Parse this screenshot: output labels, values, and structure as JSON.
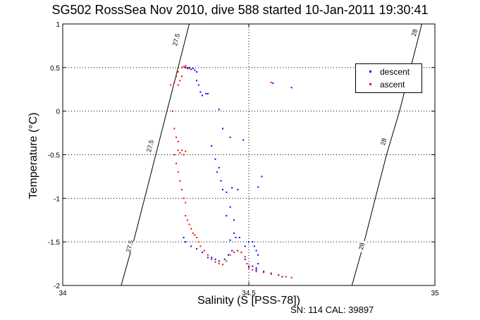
{
  "chart_data": {
    "type": "scatter",
    "title": "SG502 RossSea Nov 2010, dive 588 started 10-Jan-2011 19:30:41",
    "xlabel": "Salinity (S [PSS-78])",
    "ylabel": "Temperature (°C)",
    "xlim": [
      34,
      35
    ],
    "ylim": [
      -2,
      1
    ],
    "x_ticks": [
      "34",
      "34.5",
      "35"
    ],
    "y_ticks": [
      "-2",
      "-1.5",
      "-1",
      "-0.5",
      "0",
      "0.5",
      "1"
    ],
    "grid": "dotted",
    "legend_position": "top-right",
    "footer": "SN: 114  CAL: 39897",
    "colors": {
      "descent": "#0000ff",
      "ascent": "#ff0000",
      "axes": "#000000"
    },
    "contours": [
      {
        "label": "27.5",
        "points": [
          [
            34.157,
            -2.0
          ],
          [
            34.19,
            -1.5
          ],
          [
            34.22,
            -1.0
          ],
          [
            34.25,
            -0.5
          ],
          [
            34.28,
            0.0
          ],
          [
            34.31,
            0.5
          ],
          [
            34.34,
            1.0
          ]
        ],
        "label_positions": [
          [
            34.18,
            -1.55
          ],
          [
            34.235,
            -0.4
          ],
          [
            34.305,
            0.82
          ]
        ]
      },
      {
        "label": "28",
        "points": [
          [
            34.777,
            -2.0
          ],
          [
            34.81,
            -1.5
          ],
          [
            34.84,
            -1.0
          ],
          [
            34.87,
            -0.5
          ],
          [
            34.905,
            0.0
          ],
          [
            34.935,
            0.5
          ],
          [
            34.965,
            1.0
          ]
        ],
        "label_positions": [
          [
            34.803,
            -1.55
          ],
          [
            34.862,
            -0.35
          ],
          [
            34.945,
            0.9
          ]
        ]
      }
    ],
    "series": [
      {
        "name": "descent",
        "color": "#0000ff",
        "marker": ".",
        "points": [
          [
            34.33,
            0.5
          ],
          [
            34.335,
            0.49
          ],
          [
            34.34,
            0.5
          ],
          [
            34.345,
            0.48
          ],
          [
            34.35,
            0.49
          ],
          [
            34.355,
            0.47
          ],
          [
            34.36,
            0.45
          ],
          [
            34.36,
            0.35
          ],
          [
            34.365,
            0.3
          ],
          [
            34.37,
            0.22
          ],
          [
            34.375,
            0.18
          ],
          [
            34.385,
            0.2
          ],
          [
            34.39,
            0.2
          ],
          [
            34.42,
            0.02
          ],
          [
            34.43,
            -0.2
          ],
          [
            34.45,
            -0.3
          ],
          [
            34.485,
            -0.33
          ],
          [
            34.565,
            0.32
          ],
          [
            34.615,
            0.27
          ],
          [
            34.4,
            -0.4
          ],
          [
            34.41,
            -0.55
          ],
          [
            34.42,
            -0.65
          ],
          [
            34.415,
            -0.7
          ],
          [
            34.425,
            -0.8
          ],
          [
            34.43,
            -0.9
          ],
          [
            34.44,
            -0.93
          ],
          [
            34.455,
            -0.88
          ],
          [
            34.47,
            -0.9
          ],
          [
            34.525,
            -0.87
          ],
          [
            34.535,
            -0.75
          ],
          [
            34.45,
            -1.1
          ],
          [
            34.44,
            -1.2
          ],
          [
            34.46,
            -1.25
          ],
          [
            34.46,
            -1.4
          ],
          [
            34.465,
            -1.45
          ],
          [
            34.45,
            -1.48
          ],
          [
            34.475,
            -1.45
          ],
          [
            34.49,
            -1.55
          ],
          [
            34.5,
            -1.5
          ],
          [
            34.51,
            -1.5
          ],
          [
            34.515,
            -1.55
          ],
          [
            34.52,
            -1.6
          ],
          [
            34.525,
            -1.65
          ],
          [
            34.525,
            -1.75
          ],
          [
            34.52,
            -1.8
          ],
          [
            34.51,
            -1.78
          ],
          [
            34.5,
            -1.78
          ],
          [
            34.49,
            -1.7
          ],
          [
            34.47,
            -1.6
          ],
          [
            34.455,
            -1.6
          ],
          [
            34.445,
            -1.65
          ],
          [
            34.435,
            -1.7
          ],
          [
            34.42,
            -1.72
          ],
          [
            34.41,
            -1.7
          ],
          [
            34.4,
            -1.68
          ],
          [
            34.39,
            -1.68
          ],
          [
            34.375,
            -1.62
          ],
          [
            34.36,
            -1.58
          ],
          [
            34.345,
            -1.55
          ],
          [
            34.33,
            -1.5
          ],
          [
            34.325,
            -1.45
          ],
          [
            34.52,
            -1.82
          ],
          [
            34.54,
            -1.84
          ],
          [
            34.56,
            -1.86
          ],
          [
            34.58,
            -1.88
          ],
          [
            34.59,
            -1.9
          ]
        ]
      },
      {
        "name": "ascent",
        "color": "#ff0000",
        "marker": ".",
        "points": [
          [
            34.32,
            0.5
          ],
          [
            34.325,
            0.51
          ],
          [
            34.33,
            0.52
          ],
          [
            34.335,
            0.5
          ],
          [
            34.34,
            0.49
          ],
          [
            34.31,
            0.45
          ],
          [
            34.305,
            0.4
          ],
          [
            34.3,
            0.33
          ],
          [
            34.31,
            0.3
          ],
          [
            34.315,
            0.35
          ],
          [
            34.32,
            0.4
          ],
          [
            34.29,
            0.3
          ],
          [
            34.295,
            0.0
          ],
          [
            34.3,
            -0.2
          ],
          [
            34.305,
            -0.3
          ],
          [
            34.31,
            -0.35
          ],
          [
            34.31,
            -0.45
          ],
          [
            34.315,
            -0.48
          ],
          [
            34.32,
            -0.45
          ],
          [
            34.325,
            -0.5
          ],
          [
            34.33,
            -0.46
          ],
          [
            34.3,
            -0.5
          ],
          [
            34.305,
            -0.6
          ],
          [
            34.31,
            -0.7
          ],
          [
            34.315,
            -0.8
          ],
          [
            34.32,
            -0.9
          ],
          [
            34.325,
            -1.0
          ],
          [
            34.33,
            -1.05
          ],
          [
            34.33,
            -1.2
          ],
          [
            34.335,
            -1.25
          ],
          [
            34.34,
            -1.3
          ],
          [
            34.345,
            -1.35
          ],
          [
            34.35,
            -1.4
          ],
          [
            34.355,
            -1.42
          ],
          [
            34.36,
            -1.45
          ],
          [
            34.365,
            -1.5
          ],
          [
            34.37,
            -1.55
          ],
          [
            34.38,
            -1.6
          ],
          [
            34.39,
            -1.65
          ],
          [
            34.4,
            -1.7
          ],
          [
            34.41,
            -1.73
          ],
          [
            34.42,
            -1.75
          ],
          [
            34.43,
            -1.76
          ],
          [
            34.44,
            -1.72
          ],
          [
            34.45,
            -1.65
          ],
          [
            34.46,
            -1.62
          ],
          [
            34.47,
            -1.6
          ],
          [
            34.48,
            -1.62
          ],
          [
            34.49,
            -1.67
          ],
          [
            34.495,
            -1.75
          ],
          [
            34.5,
            -1.8
          ],
          [
            34.51,
            -1.82
          ],
          [
            34.52,
            -1.84
          ],
          [
            34.54,
            -1.85
          ],
          [
            34.56,
            -1.87
          ],
          [
            34.58,
            -1.88
          ],
          [
            34.6,
            -1.9
          ],
          [
            34.615,
            -1.91
          ],
          [
            34.56,
            0.33
          ]
        ]
      }
    ]
  }
}
